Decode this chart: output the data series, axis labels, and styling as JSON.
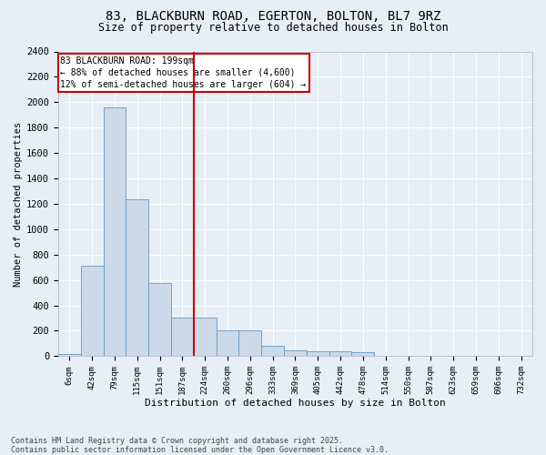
{
  "title_line1": "83, BLACKBURN ROAD, EGERTON, BOLTON, BL7 9RZ",
  "title_line2": "Size of property relative to detached houses in Bolton",
  "xlabel": "Distribution of detached houses by size in Bolton",
  "ylabel": "Number of detached properties",
  "bin_labels": [
    "6sqm",
    "42sqm",
    "79sqm",
    "115sqm",
    "151sqm",
    "187sqm",
    "224sqm",
    "260sqm",
    "296sqm",
    "333sqm",
    "369sqm",
    "405sqm",
    "442sqm",
    "478sqm",
    "514sqm",
    "550sqm",
    "587sqm",
    "623sqm",
    "659sqm",
    "696sqm",
    "732sqm"
  ],
  "bar_heights": [
    15,
    710,
    1960,
    1235,
    575,
    305,
    305,
    200,
    200,
    80,
    45,
    38,
    38,
    30,
    5,
    5,
    5,
    5,
    5,
    5,
    5
  ],
  "bar_color": "#ccd9e8",
  "bar_edge_color": "#6699bb",
  "vline_x": 5.5,
  "vline_color": "#cc0000",
  "annotation_title": "83 BLACKBURN ROAD: 199sqm",
  "annotation_line2": "← 88% of detached houses are smaller (4,600)",
  "annotation_line3": "12% of semi-detached houses are larger (604) →",
  "annotation_box_color": "#cc0000",
  "ylim": [
    0,
    2400
  ],
  "yticks": [
    0,
    200,
    400,
    600,
    800,
    1000,
    1200,
    1400,
    1600,
    1800,
    2000,
    2200,
    2400
  ],
  "footer": "Contains HM Land Registry data © Crown copyright and database right 2025.\nContains public sector information licensed under the Open Government Licence v3.0.",
  "bg_color": "#e8eef6",
  "plot_bg_color": "#e8eef6",
  "grid_color": "#ffffff"
}
